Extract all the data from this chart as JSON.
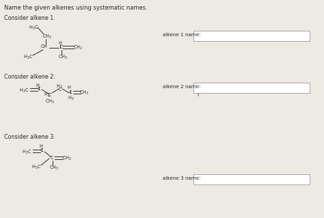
{
  "title": "Name the given alkenes using systematic names.",
  "bg_color": "#ede9e3",
  "text_color": "#2a2a2a",
  "section1_label": "Consider alkene 1.",
  "section2_label": "Consider alkene 2.",
  "section3_label": "Consider alkene 3.",
  "answer1_label": "alkene 1 name:",
  "answer2_label": "alkene 2 name:",
  "answer3_label": "alkene 3 name:",
  "answer2_cursor": "I",
  "figsize": [
    4.74,
    3.19
  ],
  "dpi": 100
}
